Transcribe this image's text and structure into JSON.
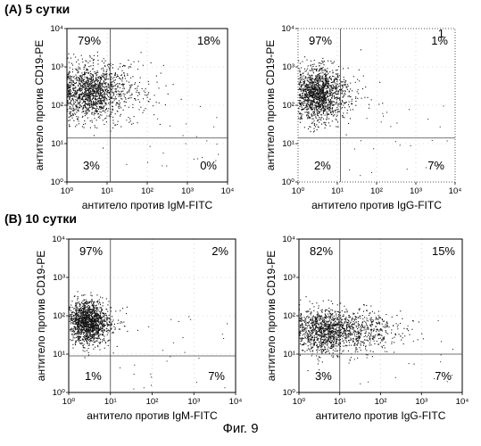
{
  "section_a_title": "(A) 5 сутки",
  "section_b_title": "(B) 10 сутки",
  "figure_caption": "Фиг. 9",
  "chart_data": [
    {
      "type": "scatter",
      "ylabel": "антитело против CD19-PE",
      "xlabel": "антитело против IgM-FITC",
      "log_scale": true,
      "xlim": [
        1,
        10000
      ],
      "ylim": [
        1,
        10000
      ],
      "x_ticks": [
        "10⁰",
        "10¹",
        "10²",
        "10³",
        "10⁴"
      ],
      "y_ticks": [
        "10⁰",
        "10¹",
        "10²",
        "10³",
        "10⁴"
      ],
      "gate_x": 12,
      "gate_y": 14,
      "quadrants": {
        "ul": "79%",
        "ur": "18%",
        "ll": "3%",
        "lr": "0%"
      },
      "population": {
        "cx": 0.55,
        "cy": 2.35,
        "sx": 0.35,
        "sy": 0.35
      },
      "tail": {
        "cx": 1.3,
        "cy": 2.4,
        "sx": 0.5,
        "sy": 0.4
      },
      "tail_fraction": 0.2
    },
    {
      "type": "scatter",
      "ylabel": "антитело против CD19-PE",
      "xlabel": "антитело против  IgG-FITC",
      "log_scale": true,
      "xlim": [
        1,
        10000
      ],
      "ylim": [
        1,
        10000
      ],
      "x_ticks": [
        "10⁰",
        "10¹",
        "10²",
        "10³",
        "10⁴"
      ],
      "y_ticks": [
        "10⁰",
        "10¹",
        "10²",
        "10³",
        "10⁴"
      ],
      "gate_x": 12,
      "gate_y": 14,
      "quadrants": {
        "ul": "97%",
        "ur": "1%",
        "ll": "2%",
        "lr": "7%"
      },
      "corner_mark": "1",
      "population": {
        "cx": 0.5,
        "cy": 2.3,
        "sx": 0.28,
        "sy": 0.35
      },
      "tail": {
        "cx": 1.1,
        "cy": 2.3,
        "sx": 0.35,
        "sy": 0.35
      },
      "tail_fraction": 0.08
    },
    {
      "type": "scatter",
      "ylabel": "антитело против CD19-PE",
      "xlabel": "антитело против IgM-FITC",
      "log_scale": true,
      "xlim": [
        1,
        10000
      ],
      "ylim": [
        1,
        10000
      ],
      "x_ticks": [
        "10⁰",
        "10¹",
        "10²",
        "10³",
        "10⁴"
      ],
      "y_ticks": [
        "10⁰",
        "10¹",
        "10²",
        "10³",
        "10⁴"
      ],
      "gate_x": 10,
      "gate_y": 9,
      "quadrants": {
        "ul": "97%",
        "ur": "2%",
        "ll": "1%",
        "lr": "7%"
      },
      "population": {
        "cx": 0.45,
        "cy": 1.85,
        "sx": 0.22,
        "sy": 0.28
      },
      "tail": {
        "cx": 0.9,
        "cy": 1.8,
        "sx": 0.25,
        "sy": 0.25
      },
      "tail_fraction": 0.05
    },
    {
      "type": "scatter",
      "ylabel": "антитело против CD19-PE",
      "xlabel": "антитело против IgG-FITC",
      "log_scale": true,
      "xlim": [
        1,
        10000
      ],
      "ylim": [
        1,
        10000
      ],
      "x_ticks": [
        "10⁰",
        "10¹",
        "10²",
        "10³",
        "10⁴"
      ],
      "y_ticks": [
        "10⁰",
        "10¹",
        "10²",
        "10³",
        "10⁴"
      ],
      "gate_x": 10,
      "gate_y": 10,
      "quadrants": {
        "ul": "82%",
        "ur": "15%",
        "ll": "3%",
        "lr": "7%"
      },
      "population": {
        "cx": 0.6,
        "cy": 1.6,
        "sx": 0.35,
        "sy": 0.3
      },
      "tail": {
        "cx": 1.4,
        "cy": 1.6,
        "sx": 0.55,
        "sy": 0.28
      },
      "tail_fraction": 0.35
    }
  ]
}
